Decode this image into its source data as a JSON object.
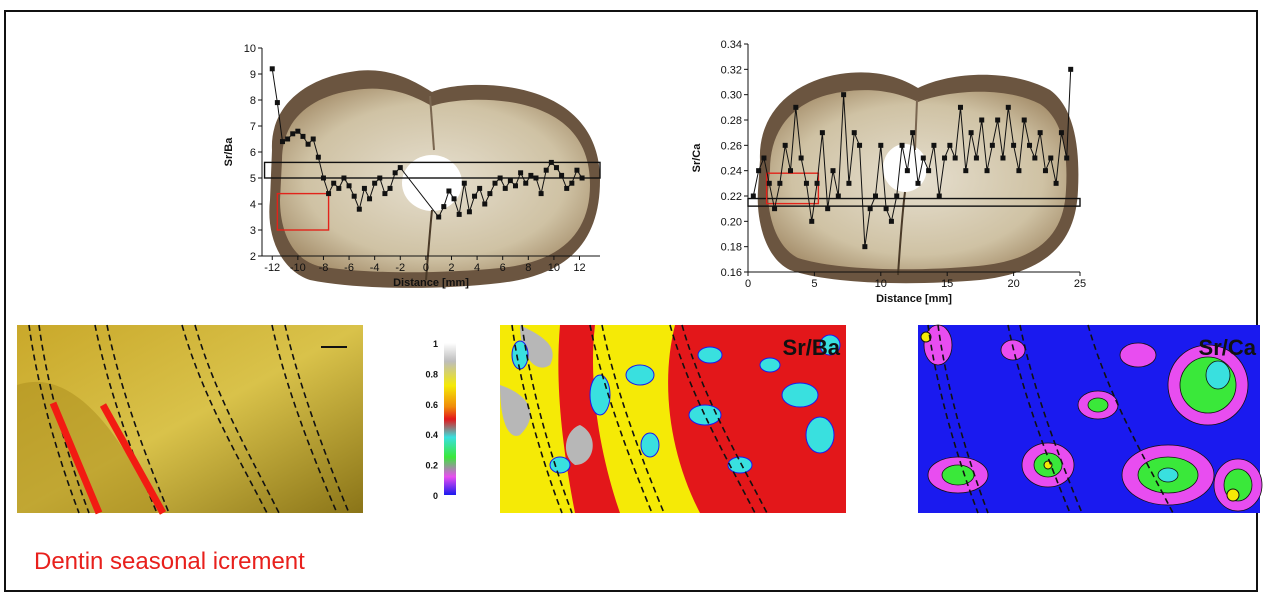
{
  "caption": "Dentin seasonal icrement",
  "colors": {
    "accent_red": "#e8201c",
    "box_red": "#e2231a",
    "tooth_surface": "#d6ccb4",
    "enamel_brown": "#6b5540",
    "dentin_yellow": "#c9b43a",
    "map_red": "#e3171a",
    "map_yellow": "#f5ea06",
    "map_cyan": "#39e0df",
    "map_blue": "#1a1aef",
    "map_magenta": "#e84df0",
    "map_green": "#3ae83a",
    "map_gray": "#b7b7b7"
  },
  "colorbar": {
    "ticks": [
      "1",
      "0.8",
      "0.6",
      "0.4",
      "0.2",
      "0"
    ]
  },
  "maps": {
    "srba_label": "Sr/Ba",
    "srca_label": "Sr/Ca"
  },
  "chart_data": [
    {
      "type": "line",
      "xlabel": "Distance [mm]",
      "ylabel": "Sr/Ba",
      "xlim": [
        -12.8,
        13.6
      ],
      "ylim": [
        2,
        10
      ],
      "xticks": [
        -12,
        -10,
        -8,
        -6,
        -4,
        -2,
        0,
        2,
        4,
        6,
        8,
        10,
        12
      ],
      "yticks": [
        2,
        3,
        4,
        5,
        6,
        7,
        8,
        9,
        10
      ],
      "x": [
        -12.0,
        -11.6,
        -11.2,
        -10.8,
        -10.4,
        -10.0,
        -9.6,
        -9.2,
        -8.8,
        -8.4,
        -8.0,
        -7.6,
        -7.2,
        -6.8,
        -6.4,
        -6.0,
        -5.6,
        -5.2,
        -4.8,
        -4.4,
        -4.0,
        -3.6,
        -3.2,
        -2.8,
        -2.4,
        -2.0,
        1.0,
        1.4,
        1.8,
        2.2,
        2.6,
        3.0,
        3.4,
        3.8,
        4.2,
        4.6,
        5.0,
        5.4,
        5.8,
        6.2,
        6.6,
        7.0,
        7.4,
        7.8,
        8.2,
        8.6,
        9.0,
        9.4,
        9.8,
        10.2,
        10.6,
        11.0,
        11.4,
        11.8,
        12.2
      ],
      "y": [
        9.2,
        7.9,
        6.4,
        6.5,
        6.7,
        6.8,
        6.6,
        6.3,
        6.5,
        5.8,
        5.0,
        4.4,
        4.8,
        4.6,
        5.0,
        4.7,
        4.3,
        3.8,
        4.6,
        4.2,
        4.8,
        5.0,
        4.4,
        4.6,
        5.2,
        5.4,
        3.5,
        3.9,
        4.5,
        4.2,
        3.6,
        4.8,
        3.7,
        4.3,
        4.6,
        4.0,
        4.4,
        4.8,
        5.0,
        4.6,
        4.9,
        4.7,
        5.2,
        4.8,
        5.1,
        5.0,
        4.4,
        5.3,
        5.6,
        5.4,
        5.1,
        4.6,
        4.8,
        5.3,
        5.0
      ],
      "annotations": [
        {
          "kind": "box",
          "color": "black",
          "x": [
            -12.6,
            13.6
          ],
          "y": [
            5.0,
            5.6
          ]
        },
        {
          "kind": "box",
          "color": "red",
          "x": [
            -11.6,
            -7.6
          ],
          "y": [
            3.0,
            4.4
          ]
        }
      ]
    },
    {
      "type": "line",
      "xlabel": "Distance [mm]",
      "ylabel": "Sr/Ca",
      "xlim": [
        0,
        25
      ],
      "ylim": [
        0.16,
        0.34
      ],
      "xticks": [
        0,
        5,
        10,
        15,
        20,
        25
      ],
      "yticks": [
        0.16,
        0.18,
        0.2,
        0.22,
        0.24,
        0.26,
        0.28,
        0.3,
        0.32,
        0.34
      ],
      "x": [
        0.4,
        0.8,
        1.2,
        1.6,
        2.0,
        2.4,
        2.8,
        3.2,
        3.6,
        4.0,
        4.4,
        4.8,
        5.2,
        5.6,
        6.0,
        6.4,
        6.8,
        7.2,
        7.6,
        8.0,
        8.4,
        8.8,
        9.2,
        9.6,
        10.0,
        10.4,
        10.8,
        11.2,
        11.6,
        12.0,
        12.4,
        12.8,
        13.2,
        13.6,
        14.0,
        14.4,
        14.8,
        15.2,
        15.6,
        16.0,
        16.4,
        16.8,
        17.2,
        17.6,
        18.0,
        18.4,
        18.8,
        19.2,
        19.6,
        20.0,
        20.4,
        20.8,
        21.2,
        21.6,
        22.0,
        22.4,
        22.8,
        23.2,
        23.6,
        24.0,
        24.3
      ],
      "y": [
        0.22,
        0.24,
        0.25,
        0.23,
        0.21,
        0.23,
        0.26,
        0.24,
        0.29,
        0.25,
        0.23,
        0.2,
        0.23,
        0.27,
        0.21,
        0.24,
        0.22,
        0.3,
        0.23,
        0.27,
        0.26,
        0.18,
        0.21,
        0.22,
        0.26,
        0.21,
        0.2,
        0.22,
        0.26,
        0.24,
        0.27,
        0.23,
        0.25,
        0.24,
        0.26,
        0.22,
        0.25,
        0.26,
        0.25,
        0.29,
        0.24,
        0.27,
        0.25,
        0.28,
        0.24,
        0.26,
        0.28,
        0.25,
        0.29,
        0.26,
        0.24,
        0.28,
        0.26,
        0.25,
        0.27,
        0.24,
        0.25,
        0.23,
        0.27,
        0.25,
        0.32
      ],
      "annotations": [
        {
          "kind": "box",
          "color": "black",
          "x": [
            0,
            25
          ],
          "y": [
            0.212,
            0.218
          ]
        },
        {
          "kind": "box",
          "color": "red",
          "x": [
            1.4,
            5.3
          ],
          "y": [
            0.214,
            0.238
          ]
        }
      ]
    }
  ]
}
